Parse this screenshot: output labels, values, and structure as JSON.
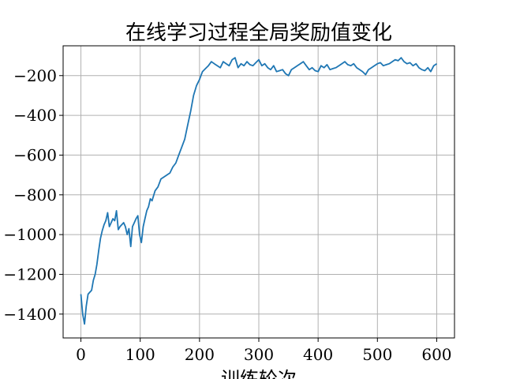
{
  "chart_data": {
    "type": "line",
    "title": "在线学习过程全局奖励值变化",
    "xlabel": "训练轮次",
    "ylabel": "",
    "xlim": [
      -30,
      630
    ],
    "ylim": [
      -1520,
      -50
    ],
    "xticks": [
      0,
      100,
      200,
      300,
      400,
      500,
      600
    ],
    "yticks": [
      -1400,
      -1200,
      -1000,
      -800,
      -600,
      -400,
      -200
    ],
    "xtick_labels": [
      "0",
      "100",
      "200",
      "300",
      "400",
      "500",
      "600"
    ],
    "ytick_labels": [
      "−1400",
      "−1200",
      "−1000",
      "−800",
      "−600",
      "−400",
      "−200"
    ],
    "grid": true,
    "series": [
      {
        "color": "#1f77b4",
        "x": [
          0,
          3,
          6,
          9,
          12,
          15,
          18,
          21,
          24,
          27,
          30,
          33,
          36,
          39,
          42,
          45,
          48,
          51,
          54,
          57,
          60,
          63,
          66,
          69,
          72,
          75,
          78,
          81,
          84,
          87,
          90,
          93,
          96,
          99,
          102,
          105,
          108,
          111,
          114,
          117,
          120,
          125,
          130,
          135,
          140,
          145,
          150,
          155,
          160,
          165,
          170,
          175,
          180,
          185,
          190,
          195,
          200,
          205,
          210,
          215,
          220,
          225,
          230,
          235,
          240,
          245,
          250,
          255,
          260,
          265,
          270,
          275,
          280,
          285,
          290,
          295,
          300,
          305,
          310,
          315,
          320,
          325,
          330,
          335,
          340,
          345,
          350,
          355,
          360,
          365,
          370,
          375,
          380,
          385,
          390,
          395,
          400,
          405,
          410,
          415,
          420,
          425,
          430,
          435,
          440,
          445,
          450,
          455,
          460,
          465,
          470,
          475,
          480,
          485,
          490,
          495,
          500,
          505,
          510,
          515,
          520,
          525,
          530,
          535,
          540,
          545,
          550,
          555,
          560,
          565,
          570,
          575,
          580,
          585,
          590,
          595,
          600
        ],
        "y": [
          -1300,
          -1400,
          -1450,
          -1360,
          -1300,
          -1290,
          -1280,
          -1230,
          -1200,
          -1150,
          -1080,
          -1020,
          -980,
          -950,
          -930,
          -890,
          -960,
          -940,
          -920,
          -930,
          -880,
          -975,
          -960,
          -950,
          -940,
          -960,
          -1000,
          -970,
          -1060,
          -960,
          -940,
          -920,
          -905,
          -1000,
          -1040,
          -960,
          -920,
          -880,
          -860,
          -820,
          -830,
          -780,
          -760,
          -720,
          -710,
          -700,
          -690,
          -660,
          -640,
          -600,
          -560,
          -520,
          -450,
          -380,
          -300,
          -250,
          -220,
          -180,
          -165,
          -150,
          -130,
          -140,
          -150,
          -160,
          -130,
          -140,
          -150,
          -120,
          -110,
          -160,
          -140,
          -150,
          -130,
          -145,
          -150,
          -135,
          -120,
          -150,
          -140,
          -160,
          -170,
          -150,
          -180,
          -175,
          -170,
          -190,
          -200,
          -170,
          -160,
          -150,
          -140,
          -130,
          -150,
          -170,
          -160,
          -175,
          -180,
          -150,
          -160,
          -145,
          -170,
          -165,
          -160,
          -150,
          -140,
          -130,
          -145,
          -150,
          -140,
          -160,
          -170,
          -180,
          -195,
          -170,
          -160,
          -150,
          -140,
          -135,
          -150,
          -145,
          -140,
          -130,
          -120,
          -125,
          -110,
          -130,
          -140,
          -135,
          -150,
          -140,
          -160,
          -170,
          -175,
          -160,
          -180,
          -150,
          -140
        ]
      }
    ]
  }
}
